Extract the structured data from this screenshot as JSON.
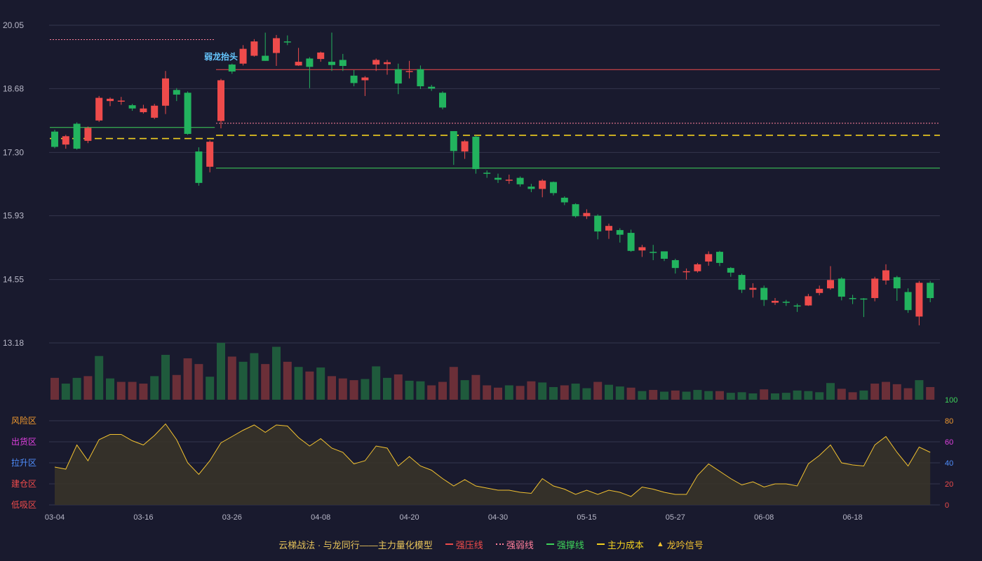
{
  "chart_data": {
    "type": "candlestick",
    "title": "",
    "x_labels": [
      "03-04",
      "03-16",
      "03-26",
      "04-08",
      "04-20",
      "04-30",
      "05-15",
      "05-27",
      "06-08",
      "06-18"
    ],
    "price_axis": {
      "ticks": [
        20.05,
        18.68,
        17.3,
        15.93,
        14.55,
        13.18
      ],
      "range": [
        13.18,
        20.05
      ]
    },
    "candles": [
      [
        17.75,
        17.42,
        17.79,
        17.39
      ],
      [
        17.47,
        17.65,
        17.68,
        17.38
      ],
      [
        17.92,
        17.38,
        17.95,
        17.36
      ],
      [
        17.55,
        17.83,
        17.86,
        17.5
      ],
      [
        17.99,
        18.48,
        18.52,
        17.96
      ],
      [
        18.41,
        18.46,
        18.49,
        18.3
      ],
      [
        18.41,
        18.42,
        18.5,
        18.33
      ],
      [
        18.32,
        18.25,
        18.35,
        18.2
      ],
      [
        18.17,
        18.25,
        18.33,
        18.14
      ],
      [
        18.05,
        18.31,
        18.35,
        18.02
      ],
      [
        18.31,
        18.9,
        19.06,
        18.13
      ],
      [
        18.65,
        18.55,
        18.69,
        18.41
      ],
      [
        18.59,
        17.7,
        18.62,
        17.68
      ],
      [
        17.32,
        16.64,
        17.41,
        16.58
      ],
      [
        16.99,
        17.53,
        17.56,
        16.87
      ],
      [
        17.98,
        18.86,
        18.89,
        17.82
      ],
      [
        19.2,
        19.05,
        19.22,
        19.0
      ],
      [
        19.22,
        19.54,
        19.62,
        19.18
      ],
      [
        19.39,
        19.7,
        19.75,
        19.37
      ],
      [
        19.39,
        19.28,
        19.89,
        19.28
      ],
      [
        19.45,
        19.77,
        19.84,
        19.17
      ],
      [
        19.7,
        19.68,
        19.83,
        19.62
      ],
      [
        19.18,
        19.26,
        19.56,
        19.17
      ],
      [
        19.33,
        19.15,
        19.36,
        18.69
      ],
      [
        19.32,
        19.46,
        19.48,
        19.26
      ],
      [
        19.26,
        19.19,
        19.89,
        19.06
      ],
      [
        19.3,
        19.17,
        19.43,
        19.06
      ],
      [
        18.96,
        18.8,
        19.08,
        18.73
      ],
      [
        18.86,
        18.92,
        18.95,
        18.52
      ],
      [
        19.2,
        19.3,
        19.33,
        19.06
      ],
      [
        19.21,
        19.25,
        19.3,
        18.98
      ],
      [
        19.1,
        18.79,
        19.22,
        18.56
      ],
      [
        19.06,
        19.06,
        19.28,
        18.9
      ],
      [
        19.1,
        18.73,
        19.18,
        18.67
      ],
      [
        18.72,
        18.68,
        18.76,
        18.63
      ],
      [
        18.59,
        18.27,
        18.62,
        18.23
      ],
      [
        17.76,
        17.33,
        17.76,
        17.03
      ],
      [
        17.32,
        17.54,
        17.57,
        17.16
      ],
      [
        17.64,
        16.94,
        17.67,
        16.84
      ],
      [
        16.86,
        16.84,
        16.91,
        16.75
      ],
      [
        16.75,
        16.71,
        16.84,
        16.64
      ],
      [
        16.69,
        16.71,
        16.82,
        16.62
      ],
      [
        16.75,
        16.61,
        16.78,
        16.56
      ],
      [
        16.56,
        16.51,
        16.62,
        16.44
      ],
      [
        16.51,
        16.69,
        16.72,
        16.33
      ],
      [
        16.66,
        16.42,
        16.67,
        16.37
      ],
      [
        16.32,
        16.22,
        16.35,
        16.16
      ],
      [
        16.18,
        15.92,
        16.2,
        15.89
      ],
      [
        15.92,
        15.99,
        16.07,
        15.86
      ],
      [
        15.93,
        15.59,
        15.96,
        15.42
      ],
      [
        15.61,
        15.71,
        15.76,
        15.43
      ],
      [
        15.62,
        15.52,
        15.66,
        15.35
      ],
      [
        15.56,
        15.17,
        15.63,
        15.15
      ],
      [
        15.18,
        15.25,
        15.3,
        15.04
      ],
      [
        15.15,
        15.13,
        15.3,
        14.97
      ],
      [
        15.16,
        15.0,
        15.16,
        14.95
      ],
      [
        14.97,
        14.8,
        15.0,
        14.68
      ],
      [
        14.73,
        14.73,
        14.79,
        14.55
      ],
      [
        14.73,
        14.88,
        14.91,
        14.7
      ],
      [
        14.94,
        15.1,
        15.16,
        14.85
      ],
      [
        15.15,
        14.91,
        15.17,
        14.84
      ],
      [
        14.8,
        14.7,
        14.82,
        14.61
      ],
      [
        14.65,
        14.33,
        14.68,
        14.26
      ],
      [
        14.33,
        14.37,
        14.47,
        14.16
      ],
      [
        14.37,
        14.11,
        14.42,
        13.98
      ],
      [
        14.05,
        14.09,
        14.15,
        14.0
      ],
      [
        14.07,
        14.05,
        14.11,
        13.98
      ],
      [
        13.99,
        13.97,
        14.03,
        13.85
      ],
      [
        13.99,
        14.19,
        14.24,
        13.98
      ],
      [
        14.26,
        14.35,
        14.42,
        14.21
      ],
      [
        14.36,
        14.54,
        14.84,
        14.33
      ],
      [
        14.57,
        14.18,
        14.6,
        14.1
      ],
      [
        14.15,
        14.13,
        14.22,
        14.02
      ],
      [
        14.14,
        14.13,
        14.15,
        13.74
      ],
      [
        14.15,
        14.57,
        14.61,
        14.08
      ],
      [
        14.53,
        14.75,
        14.88,
        14.44
      ],
      [
        14.6,
        14.36,
        14.63,
        14.09
      ],
      [
        14.28,
        13.89,
        14.36,
        13.83
      ],
      [
        13.75,
        14.48,
        14.52,
        13.56
      ],
      [
        14.48,
        14.15,
        14.52,
        14.06
      ]
    ],
    "volume": [
      [
        0.38,
        1
      ],
      [
        0.28,
        0
      ],
      [
        0.38,
        0
      ],
      [
        0.41,
        1
      ],
      [
        0.76,
        0
      ],
      [
        0.37,
        0
      ],
      [
        0.31,
        1
      ],
      [
        0.31,
        1
      ],
      [
        0.28,
        1
      ],
      [
        0.41,
        0
      ],
      [
        0.78,
        0
      ],
      [
        0.43,
        1
      ],
      [
        0.72,
        1
      ],
      [
        0.62,
        1
      ],
      [
        0.4,
        0
      ],
      [
        0.99,
        0
      ],
      [
        0.75,
        1
      ],
      [
        0.66,
        0
      ],
      [
        0.81,
        0
      ],
      [
        0.62,
        1
      ],
      [
        0.92,
        0
      ],
      [
        0.66,
        1
      ],
      [
        0.57,
        0
      ],
      [
        0.49,
        1
      ],
      [
        0.56,
        0
      ],
      [
        0.41,
        1
      ],
      [
        0.37,
        1
      ],
      [
        0.34,
        1
      ],
      [
        0.36,
        0
      ],
      [
        0.58,
        0
      ],
      [
        0.38,
        0
      ],
      [
        0.44,
        1
      ],
      [
        0.33,
        0
      ],
      [
        0.32,
        0
      ],
      [
        0.25,
        1
      ],
      [
        0.31,
        1
      ],
      [
        0.57,
        1
      ],
      [
        0.34,
        0
      ],
      [
        0.43,
        1
      ],
      [
        0.25,
        1
      ],
      [
        0.21,
        1
      ],
      [
        0.25,
        0
      ],
      [
        0.24,
        1
      ],
      [
        0.32,
        1
      ],
      [
        0.3,
        0
      ],
      [
        0.22,
        0
      ],
      [
        0.25,
        1
      ],
      [
        0.28,
        0
      ],
      [
        0.2,
        0
      ],
      [
        0.31,
        1
      ],
      [
        0.26,
        0
      ],
      [
        0.23,
        0
      ],
      [
        0.21,
        1
      ],
      [
        0.15,
        0
      ],
      [
        0.17,
        1
      ],
      [
        0.14,
        0
      ],
      [
        0.16,
        1
      ],
      [
        0.14,
        0
      ],
      [
        0.17,
        0
      ],
      [
        0.15,
        0
      ],
      [
        0.15,
        1
      ],
      [
        0.12,
        0
      ],
      [
        0.13,
        0
      ],
      [
        0.11,
        0
      ],
      [
        0.18,
        1
      ],
      [
        0.11,
        0
      ],
      [
        0.12,
        0
      ],
      [
        0.16,
        0
      ],
      [
        0.15,
        0
      ],
      [
        0.13,
        0
      ],
      [
        0.29,
        0
      ],
      [
        0.19,
        1
      ],
      [
        0.13,
        1
      ],
      [
        0.16,
        0
      ],
      [
        0.28,
        1
      ],
      [
        0.31,
        1
      ],
      [
        0.27,
        1
      ],
      [
        0.2,
        1
      ],
      [
        0.34,
        0
      ],
      [
        0.22,
        1
      ]
    ],
    "indicator": {
      "axis_ticks": [
        100,
        80,
        60,
        40,
        20,
        0
      ],
      "zone_labels": [
        "风险区",
        "出货区",
        "拉升区",
        "建仓区",
        "低吸区"
      ],
      "values": [
        36,
        34,
        57,
        42,
        62,
        67,
        67,
        61,
        57,
        66,
        77,
        62,
        40,
        29,
        42,
        59,
        65,
        71,
        76,
        69,
        76,
        75,
        64,
        56,
        63,
        54,
        50,
        39,
        42,
        56,
        54,
        37,
        46,
        37,
        33,
        25,
        18,
        24,
        18,
        16,
        14,
        14,
        12,
        11,
        25,
        18,
        15,
        10,
        14,
        10,
        14,
        12,
        8,
        17,
        15,
        12,
        10,
        10,
        28,
        39,
        32,
        25,
        19,
        22,
        17,
        20,
        20,
        18,
        39,
        47,
        57,
        40,
        38,
        37,
        57,
        65,
        50,
        37,
        55,
        50
      ]
    },
    "lines": [
      {
        "name": "强压线",
        "style": "solid",
        "color": "#ee4b4b",
        "segments": [
          {
            "from": 15,
            "to": 79,
            "y": 19.09
          }
        ]
      },
      {
        "name": "强弱线",
        "style": "dotted",
        "color": "#ff7e9a",
        "segments": [
          {
            "from": 0,
            "to": 14,
            "y": 19.74
          },
          {
            "from": 15,
            "to": 79,
            "y": 17.93
          }
        ]
      },
      {
        "name": "强撑线",
        "style": "solid",
        "color": "#3ed35a",
        "segments": [
          {
            "from": 0,
            "to": 14,
            "y": 17.84
          },
          {
            "from": 15,
            "to": 79,
            "y": 16.96
          }
        ]
      },
      {
        "name": "主力成本",
        "style": "dashed",
        "color": "#f2d01f",
        "segments": [
          {
            "from": 0,
            "to": 14,
            "y": 17.6
          },
          {
            "from": 15,
            "to": 79,
            "y": 17.67
          }
        ]
      }
    ],
    "annotations": [
      {
        "text": "弱龙抬头",
        "index": 15,
        "price": 19.25
      }
    ],
    "legend": {
      "prefix": "云梯战法 · 与龙同行——主力量化模型",
      "items": [
        {
          "label": "强压线",
          "color": "#ee4b4b",
          "style": "solid"
        },
        {
          "label": "强弱线",
          "color": "#ff7e9a",
          "style": "dotted"
        },
        {
          "label": "强撑线",
          "color": "#3ed35a",
          "style": "solid"
        },
        {
          "label": "主力成本",
          "color": "#f2d01f",
          "style": "dashed"
        },
        {
          "label": "龙吟信号",
          "color": "#f2c230",
          "style": "triangle"
        }
      ]
    }
  }
}
